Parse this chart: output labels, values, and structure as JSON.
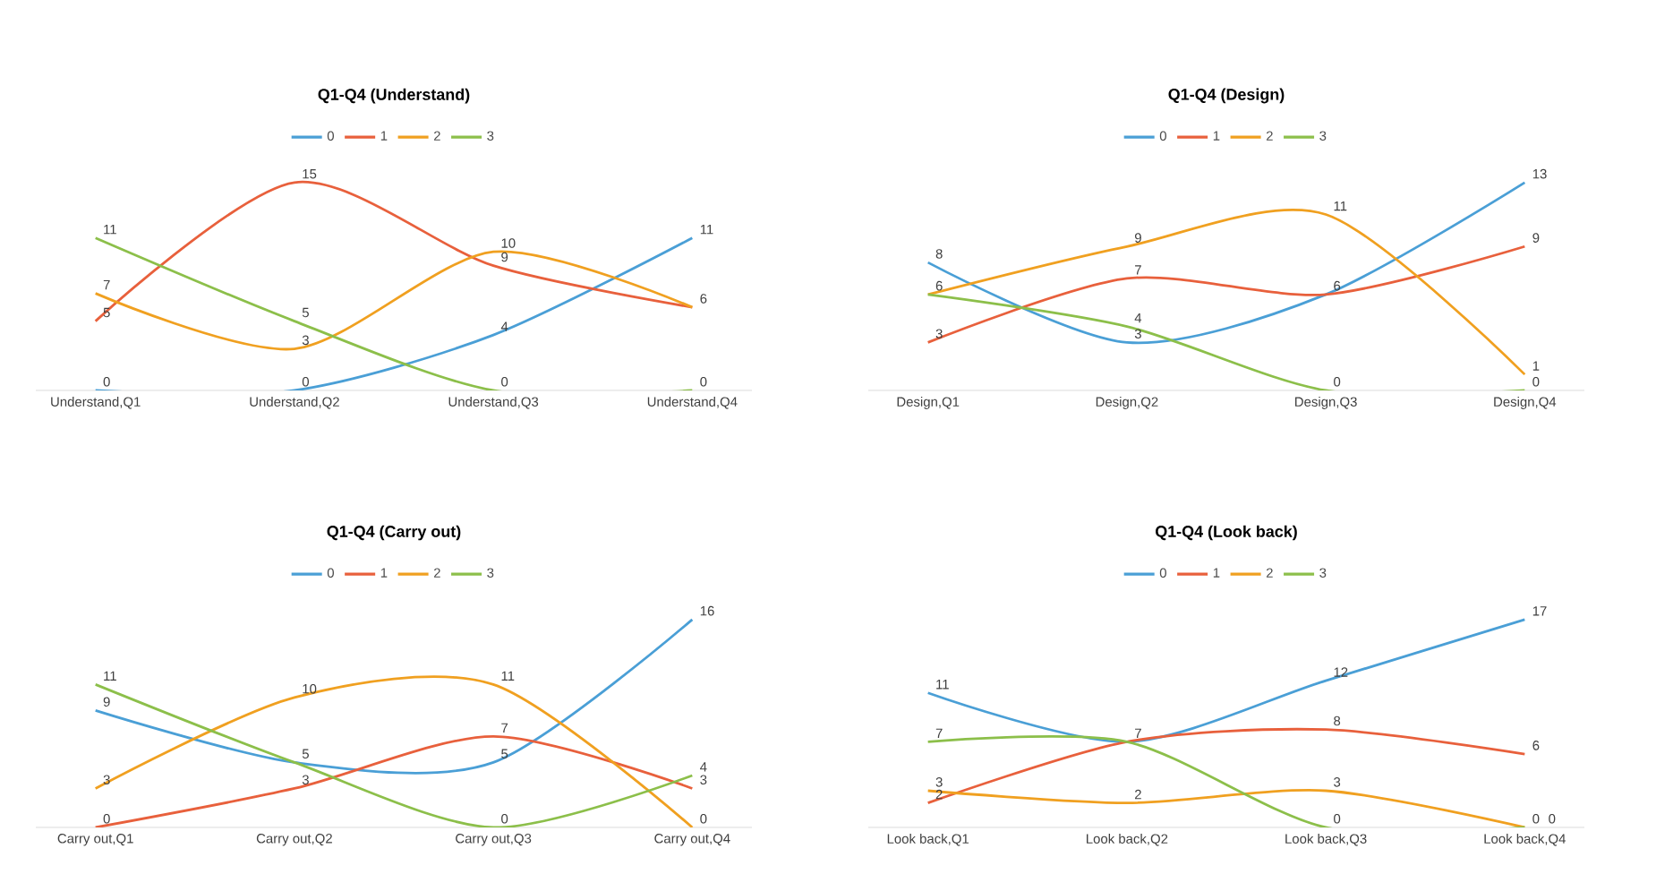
{
  "chart_data": [
    {
      "type": "line",
      "title": "Q1-Q4 (Understand)",
      "categories": [
        "Understand,Q1",
        "Understand,Q2",
        "Understand,Q3",
        "Understand,Q4"
      ],
      "legend": "top",
      "marker": "none",
      "series": [
        {
          "name": "0",
          "color": "#4a9fd6",
          "values": [
            0,
            0,
            4,
            11
          ],
          "value_labels": [
            "0",
            "0",
            "4",
            "11"
          ]
        },
        {
          "name": "1",
          "color": "#e8603c",
          "values": [
            5,
            15,
            9,
            6
          ],
          "value_labels": [
            "5",
            "15",
            "9",
            "6"
          ]
        },
        {
          "name": "2",
          "color": "#f0a020",
          "values": [
            7,
            3,
            10,
            6
          ],
          "value_labels": [
            "7",
            "3",
            "10",
            null
          ]
        },
        {
          "name": "3",
          "color": "#8cbf4a",
          "values": [
            11,
            5,
            0,
            0
          ],
          "value_labels": [
            "11",
            "5",
            "0",
            "0"
          ]
        }
      ]
    },
    {
      "type": "line",
      "title": "Q1-Q4 (Design)",
      "categories": [
        "Design,Q1",
        "Design,Q2",
        "Design,Q3",
        "Design,Q4"
      ],
      "legend": "top",
      "marker": "none",
      "series": [
        {
          "name": "0",
          "color": "#4a9fd6",
          "values": [
            8,
            3,
            6,
            13
          ],
          "value_labels": [
            "8",
            "3",
            null,
            "13"
          ]
        },
        {
          "name": "1",
          "color": "#e8603c",
          "values": [
            3,
            7,
            6,
            9
          ],
          "value_labels": [
            "3",
            "7",
            "6",
            "9"
          ]
        },
        {
          "name": "2",
          "color": "#f0a020",
          "values": [
            6,
            9,
            11,
            1
          ],
          "value_labels": [
            "6",
            "9",
            "11",
            "1"
          ]
        },
        {
          "name": "3",
          "color": "#8cbf4a",
          "values": [
            6,
            4,
            0,
            0
          ],
          "value_labels": [
            null,
            "4",
            "0",
            "0"
          ]
        }
      ]
    },
    {
      "type": "line",
      "title": "Q1-Q4 (Carry out)",
      "categories": [
        "Carry out,Q1",
        "Carry out,Q2",
        "Carry out,Q3",
        "Carry out,Q4"
      ],
      "legend": "top",
      "marker": "none",
      "series": [
        {
          "name": "0",
          "color": "#4a9fd6",
          "values": [
            9,
            5,
            5,
            16
          ],
          "value_labels": [
            "9",
            "5",
            "5",
            "16"
          ]
        },
        {
          "name": "1",
          "color": "#e8603c",
          "values": [
            0,
            3,
            7,
            3
          ],
          "value_labels": [
            "0",
            "3",
            "7",
            "3"
          ]
        },
        {
          "name": "2",
          "color": "#f0a020",
          "values": [
            3,
            10,
            11,
            0
          ],
          "value_labels": [
            "3",
            "10",
            "11",
            "0"
          ]
        },
        {
          "name": "3",
          "color": "#8cbf4a",
          "values": [
            11,
            5,
            0,
            4
          ],
          "value_labels": [
            "11",
            null,
            "0",
            "4"
          ]
        }
      ]
    },
    {
      "type": "line",
      "title": "Q1-Q4 (Look back)",
      "categories": [
        "Look back,Q1",
        "Look back,Q2",
        "Look back,Q3",
        "Look back,Q4"
      ],
      "legend": "top",
      "marker": "none",
      "series": [
        {
          "name": "0",
          "color": "#4a9fd6",
          "values": [
            11,
            7,
            12,
            17
          ],
          "value_labels": [
            "11",
            "7",
            "12",
            "17"
          ]
        },
        {
          "name": "1",
          "color": "#e8603c",
          "values": [
            2,
            7,
            8,
            6
          ],
          "value_labels": [
            "2",
            null,
            "8",
            "6"
          ]
        },
        {
          "name": "2",
          "color": "#f0a020",
          "values": [
            3,
            2,
            3,
            0
          ],
          "value_labels": [
            "3",
            "2",
            "3",
            "0"
          ]
        },
        {
          "name": "3",
          "color": "#8cbf4a",
          "values": [
            7,
            7,
            0,
            0
          ],
          "value_labels": [
            "7",
            null,
            "0",
            "0"
          ]
        }
      ]
    }
  ]
}
